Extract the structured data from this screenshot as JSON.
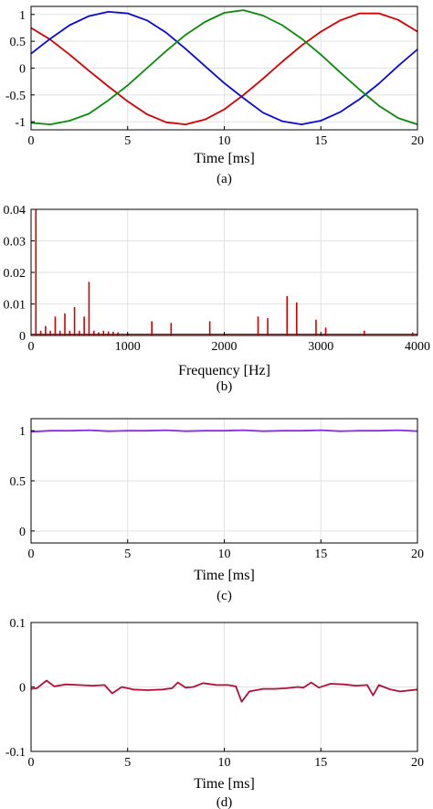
{
  "chart_data": [
    {
      "id": "a",
      "type": "line",
      "xlabel": "Time [ms]",
      "caption": "(a)",
      "xlim": [
        0,
        20
      ],
      "ylim": [
        -1.15,
        1.15
      ],
      "xticks": [
        0,
        5,
        10,
        15,
        20
      ],
      "xtick_labels": [
        "0",
        "5",
        "10",
        "15",
        "20"
      ],
      "yticks": [
        -1,
        -0.5,
        0,
        0.5,
        1
      ],
      "ytick_labels": [
        "-1",
        "-0.5",
        "0",
        "0.5",
        "1"
      ],
      "grid": true,
      "series": [
        {
          "color": "#d40000",
          "x": [
            0,
            1,
            2,
            3,
            4,
            5,
            6,
            7,
            8,
            9,
            10,
            11,
            12,
            13,
            14,
            15,
            16,
            17,
            18,
            19,
            20
          ],
          "values": [
            0.75,
            0.53,
            0.25,
            -0.05,
            -0.34,
            -0.62,
            -0.86,
            -1.01,
            -1.05,
            -0.96,
            -0.77,
            -0.5,
            -0.2,
            0.12,
            0.42,
            0.68,
            0.89,
            1.02,
            1.02,
            0.9,
            0.68
          ]
        },
        {
          "color": "#0a0ad4",
          "x": [
            0,
            1,
            2,
            3,
            4,
            5,
            6,
            7,
            8,
            9,
            10,
            11,
            12,
            13,
            14,
            15,
            16,
            17,
            18,
            19,
            20
          ],
          "values": [
            0.27,
            0.55,
            0.8,
            0.97,
            1.05,
            1.02,
            0.89,
            0.66,
            0.36,
            0.04,
            -0.28,
            -0.56,
            -0.83,
            -0.99,
            -1.05,
            -0.98,
            -0.82,
            -0.58,
            -0.29,
            0.04,
            0.35
          ]
        },
        {
          "color": "#0a8a0a",
          "x": [
            0,
            1,
            2,
            3,
            4,
            5,
            6,
            7,
            8,
            9,
            10,
            11,
            12,
            13,
            14,
            15,
            16,
            17,
            18,
            19,
            20
          ],
          "values": [
            -1.02,
            -1.05,
            -0.98,
            -0.85,
            -0.6,
            -0.32,
            0.0,
            0.32,
            0.62,
            0.86,
            1.03,
            1.08,
            0.98,
            0.8,
            0.55,
            0.25,
            -0.08,
            -0.4,
            -0.7,
            -0.93,
            -1.05
          ]
        }
      ]
    },
    {
      "id": "b",
      "type": "bar",
      "xlabel": "Frequency [Hz]",
      "caption": "(b)",
      "xlim": [
        0,
        4000
      ],
      "ylim": [
        0,
        0.04
      ],
      "xticks": [
        0,
        1000,
        2000,
        3000,
        4000
      ],
      "xtick_labels": [
        "0",
        "1000",
        "2000",
        "3000",
        "4000"
      ],
      "yticks": [
        0,
        0.01,
        0.02,
        0.03,
        0.04
      ],
      "ytick_labels": [
        "0",
        "0.01",
        "0.02",
        "0.03",
        "0.04"
      ],
      "grid": true,
      "color": "#d40000",
      "x": [
        50,
        100,
        150,
        200,
        250,
        300,
        350,
        400,
        450,
        500,
        550,
        600,
        650,
        700,
        750,
        800,
        850,
        900,
        1250,
        1450,
        1850,
        2350,
        2450,
        2650,
        2750,
        2950,
        3050,
        3450,
        3950
      ],
      "values": [
        0.04,
        0.0015,
        0.003,
        0.0015,
        0.006,
        0.0015,
        0.007,
        0.0015,
        0.009,
        0.0015,
        0.006,
        0.017,
        0.0015,
        0.001,
        0.0015,
        0.0013,
        0.0012,
        0.001,
        0.0045,
        0.004,
        0.0045,
        0.006,
        0.0055,
        0.0125,
        0.0105,
        0.005,
        0.0025,
        0.0015,
        0.001
      ]
    },
    {
      "id": "c",
      "type": "line",
      "xlabel": "Time [ms]",
      "caption": "(c)",
      "xlim": [
        0,
        20
      ],
      "ylim": [
        -0.12,
        1.12
      ],
      "xticks": [
        0,
        5,
        10,
        15,
        20
      ],
      "xtick_labels": [
        "0",
        "5",
        "10",
        "15",
        "20"
      ],
      "yticks": [
        0,
        0.5,
        1
      ],
      "ytick_labels": [
        "0",
        "0.5",
        "1"
      ],
      "grid": true,
      "series": [
        {
          "color": "#8a2be2",
          "x": [
            0,
            1,
            2,
            3,
            4,
            5,
            6,
            7,
            8,
            9,
            10,
            11,
            12,
            13,
            14,
            15,
            16,
            17,
            18,
            19,
            20
          ],
          "values": [
            0.99,
            1.0,
            1.0,
            1.005,
            0.995,
            1.0,
            1.0,
            1.005,
            0.995,
            1.0,
            1.0,
            1.005,
            0.995,
            1.0,
            1.0,
            1.005,
            0.995,
            1.0,
            1.0,
            1.005,
            0.995
          ]
        }
      ]
    },
    {
      "id": "d",
      "type": "line",
      "xlabel": "Time [ms]",
      "caption": "(d)",
      "xlim": [
        0,
        20
      ],
      "ylim": [
        -0.1,
        0.1
      ],
      "xticks": [
        0,
        5,
        10,
        15,
        20
      ],
      "xtick_labels": [
        "0",
        "5",
        "10",
        "15",
        "20"
      ],
      "yticks": [
        -0.1,
        0,
        0.1
      ],
      "ytick_labels": [
        "-0.1",
        "0",
        "0.1"
      ],
      "grid": true,
      "series": [
        {
          "color": "#b0103a",
          "x": [
            0,
            0.3,
            0.8,
            1.2,
            1.8,
            2.5,
            3.2,
            3.8,
            4.2,
            4.7,
            5.3,
            6,
            6.8,
            7.3,
            7.6,
            8,
            8.4,
            8.9,
            9.6,
            10.2,
            10.6,
            10.9,
            11.3,
            12,
            12.6,
            13.2,
            13.8,
            14.1,
            14.5,
            14.9,
            15.5,
            16.2,
            16.8,
            17.4,
            17.7,
            18,
            18.6,
            19.1,
            20
          ],
          "values": [
            -0.003,
            -0.002,
            0.01,
            0.001,
            0.004,
            0.003,
            0.002,
            0.003,
            -0.01,
            0.0,
            -0.004,
            -0.005,
            -0.004,
            -0.002,
            0.007,
            -0.001,
            0.0,
            0.006,
            0.003,
            0.003,
            0.001,
            -0.023,
            -0.007,
            -0.003,
            -0.003,
            -0.002,
            0.0,
            -0.001,
            0.007,
            -0.001,
            0.005,
            0.004,
            0.002,
            0.003,
            -0.013,
            0.003,
            -0.004,
            -0.007,
            -0.004
          ]
        }
      ]
    }
  ]
}
